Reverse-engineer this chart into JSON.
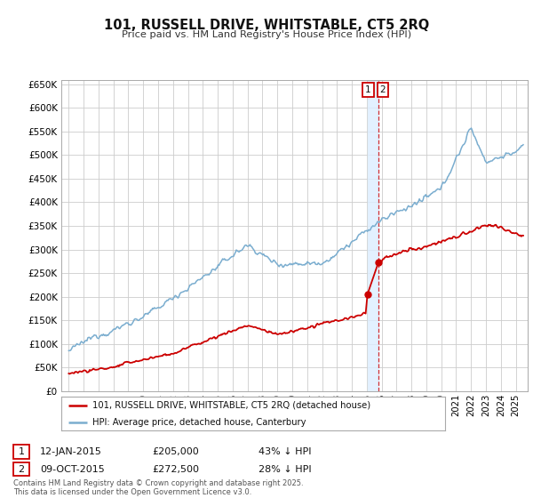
{
  "title": "101, RUSSELL DRIVE, WHITSTABLE, CT5 2RQ",
  "subtitle": "Price paid vs. HM Land Registry's House Price Index (HPI)",
  "hpi_color": "#7aadcf",
  "price_color": "#cc0000",
  "vline_color": "#cc0000",
  "vband_color": "#ddeeff",
  "background_color": "#ffffff",
  "grid_color": "#cccccc",
  "ylim": [
    0,
    660000
  ],
  "yticks": [
    0,
    50000,
    100000,
    150000,
    200000,
    250000,
    300000,
    350000,
    400000,
    450000,
    500000,
    550000,
    600000,
    650000
  ],
  "sale1_date": "12-JAN-2015",
  "sale1_price": 205000,
  "sale1_label": "43% ↓ HPI",
  "sale2_date": "09-OCT-2015",
  "sale2_price": 272500,
  "sale2_label": "28% ↓ HPI",
  "sale1_year": 2015.04,
  "sale2_year": 2015.78,
  "legend_line1": "101, RUSSELL DRIVE, WHITSTABLE, CT5 2RQ (detached house)",
  "legend_line2": "HPI: Average price, detached house, Canterbury",
  "footnote": "Contains HM Land Registry data © Crown copyright and database right 2025.\nThis data is licensed under the Open Government Licence v3.0.",
  "xlim_start": 1994.5,
  "xlim_end": 2025.8
}
